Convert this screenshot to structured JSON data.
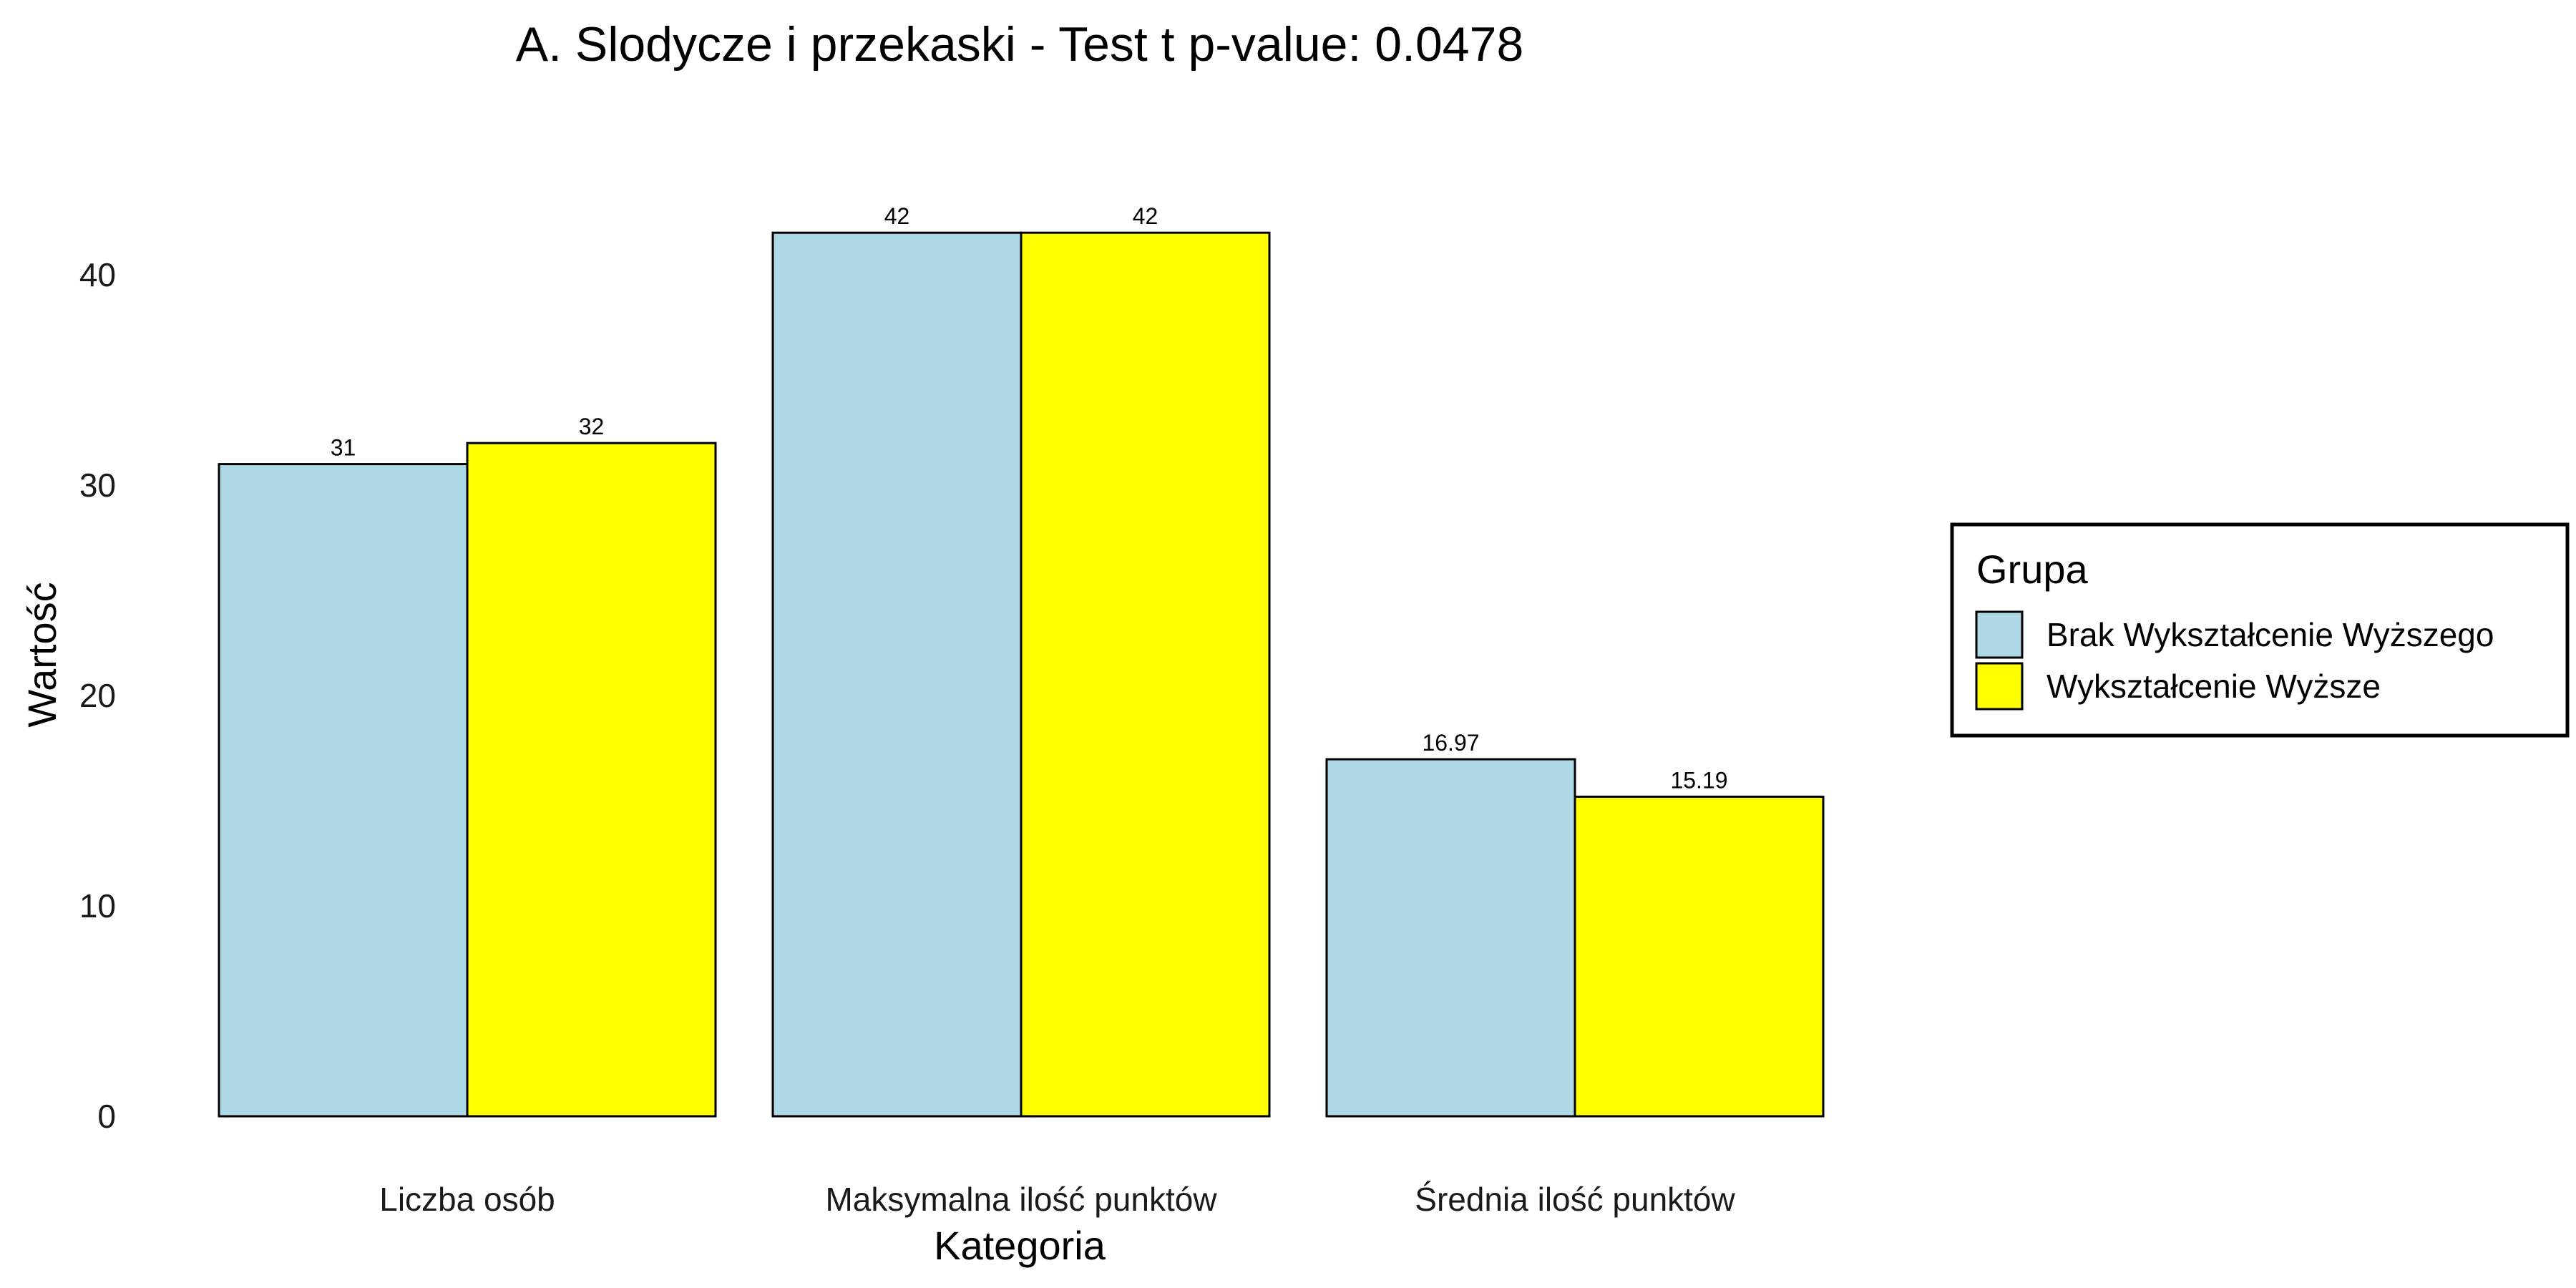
{
  "chart_data": {
    "type": "bar",
    "title": "A. Slodycze i przekaski - Test t p-value: 0.0478",
    "xlabel": "Kategoria",
    "ylabel": "Wartość",
    "categories": [
      "Liczba osób",
      "Maksymalna ilość punktów",
      "Średnia ilość punktów"
    ],
    "series": [
      {
        "name": "Brak Wykształcenie Wyższego",
        "color": "#ADD8E6",
        "values": [
          31,
          42,
          16.97
        ],
        "value_labels": [
          "31",
          "42",
          "16.97"
        ]
      },
      {
        "name": "Wykształcenie Wyższe",
        "color": "#FFFF00",
        "values": [
          32,
          42,
          15.19
        ],
        "value_labels": [
          "32",
          "42",
          "15.19"
        ]
      }
    ],
    "ylim": [
      0,
      42
    ],
    "yticks": [
      0,
      10,
      20,
      30,
      40
    ],
    "ytick_labels": [
      "0",
      "10",
      "20",
      "30",
      "40"
    ],
    "grid": false,
    "legend": {
      "title": "Grupa",
      "placement": "right"
    }
  }
}
